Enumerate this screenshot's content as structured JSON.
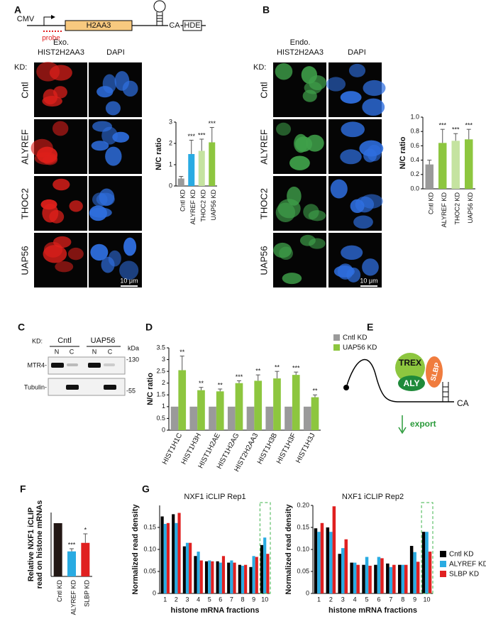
{
  "panel_labels": [
    "A",
    "B",
    "C",
    "D",
    "E",
    "F",
    "G"
  ],
  "panel_a": {
    "construct": {
      "promoter": "CMV",
      "probe": "probe",
      "gene": "H2AA3",
      "ca": "CA",
      "hde": "HDE"
    },
    "header_signal": [
      "Exo.",
      "HIST2H2AA3"
    ],
    "header_dapi": "DAPI",
    "kd": "KD:",
    "rows": [
      "Cntl",
      "ALYREF",
      "THOC2",
      "UAP56"
    ],
    "scale_bar": "10 μm"
  },
  "panel_b": {
    "header_signal": [
      "Endo.",
      "HIST2H2AA3"
    ],
    "header_dapi": "DAPI",
    "kd": "KD:",
    "rows": [
      "Cntl",
      "ALYREF",
      "THOC2",
      "UAP56"
    ],
    "scale_bar": "10 μm"
  },
  "panel_c": {
    "kd": "KD:",
    "groups": [
      "Cntl",
      "UAP56"
    ],
    "lanes": [
      "N",
      "C",
      "N",
      "C"
    ],
    "unit": "kDa",
    "bands": [
      "MTR4-",
      "Tubulin-"
    ],
    "markers": [
      "-130",
      "-55"
    ]
  },
  "panel_e": {
    "trex": "TREX",
    "aly": "ALY",
    "slbp": "SLBP",
    "ca": "CA",
    "export": "export"
  },
  "chart_data": [
    {
      "type": "bar",
      "ylabel": "N/C ratio",
      "categories": [
        "Cntl KD",
        "ALYREF KD",
        "THOC2 KD",
        "UAP56 KD"
      ],
      "values": [
        0.35,
        1.5,
        1.65,
        2.05
      ],
      "errors": [
        0.1,
        0.65,
        0.55,
        0.7
      ],
      "significance": [
        null,
        "***",
        "***",
        "***"
      ],
      "colors": [
        "#9a9a9a",
        "#29abe2",
        "#c5e3a0",
        "#8dc63f"
      ],
      "ylim": [
        0,
        3
      ],
      "yticks": [
        0,
        1,
        2,
        3
      ]
    },
    {
      "type": "bar",
      "ylabel": "N/C ratio",
      "categories": [
        "Cntl KD",
        "ALYREF KD",
        "THOC2 KD",
        "UAP56 KD"
      ],
      "values": [
        0.34,
        0.64,
        0.67,
        0.69
      ],
      "errors": [
        0.06,
        0.19,
        0.1,
        0.14
      ],
      "significance": [
        null,
        "***",
        "***",
        "***"
      ],
      "colors": [
        "#9a9a9a",
        "#8dc63f",
        "#c5e3a0",
        "#8dc63f"
      ],
      "ylim": [
        0,
        1.0
      ],
      "yticks": [
        {
          "value": 0,
          "label": "0.0"
        },
        0.2,
        0.4,
        0.6,
        0.8,
        {
          "value": 1.0,
          "label": "1.0"
        }
      ]
    },
    {
      "type": "bar",
      "ylabel": "N/C ratio",
      "categories": [
        "HIST1H1C",
        "HIST1H3H",
        "HIST1H2AE",
        "HIST1H2AG",
        "HIST2H2AA3",
        "HIST1H3B",
        "HIST1H3F",
        "HIST1H3J"
      ],
      "series": [
        {
          "name": "Cntl KD",
          "color": "#9a9a9a",
          "values": [
            1,
            1,
            1,
            1,
            1,
            1,
            1,
            1
          ]
        },
        {
          "name": "UAP56 KD",
          "color": "#8dc63f",
          "values": [
            2.55,
            1.7,
            1.65,
            2.0,
            2.1,
            2.2,
            2.35,
            1.4
          ],
          "errors": [
            0.6,
            0.12,
            0.1,
            0.1,
            0.25,
            0.3,
            0.12,
            0.1
          ],
          "significance": [
            "**",
            "**",
            "**",
            "***",
            "**",
            "**",
            "***",
            "**"
          ]
        }
      ],
      "ylim": [
        0,
        3.5
      ],
      "yticks": [
        0,
        0.5,
        1,
        1.5,
        2,
        2.5,
        3,
        3.5
      ]
    },
    {
      "type": "bar",
      "ylabel": [
        "Relative NXF1 iCLIP",
        "read on histone mRNAs"
      ],
      "categories": [
        "Cntl KD",
        "ALYREF KD",
        "SLBP KD"
      ],
      "values": [
        1.0,
        0.47,
        0.63
      ],
      "errors": [
        null,
        0.05,
        0.17
      ],
      "significance": [
        null,
        "***",
        "*"
      ],
      "colors": [
        "#231815",
        "#29abe2",
        "#e02020"
      ],
      "ylim": [
        0,
        1.2
      ]
    },
    {
      "type": "bar",
      "ylabel": "Normalized read density",
      "xlabel": "histone mRNA fractions",
      "categories": [
        "1",
        "2",
        "3",
        "4",
        "5",
        "6",
        "7",
        "8",
        "9",
        "10"
      ],
      "series": [
        {
          "name": "Cntl KD",
          "color": "#000000"
        },
        {
          "name": "ALYREF KD",
          "color": "#29abe2"
        },
        {
          "name": "SLBP KD",
          "color": "#e02020"
        }
      ],
      "panels": [
        {
          "title": "NXF1 iCLIP Rep1",
          "ylim": [
            0,
            0.2
          ],
          "yticks": [
            0,
            0.05,
            {
              "value": 0.1,
              "label": "0.10"
            },
            0.15
          ],
          "series": [
            {
              "values": [
                0.175,
                0.18,
                0.107,
                0.085,
                0.073,
                0.073,
                0.07,
                0.065,
                0.06,
                0.11
              ]
            },
            {
              "values": [
                0.158,
                0.16,
                0.115,
                0.095,
                0.075,
                0.07,
                0.075,
                0.063,
                0.085,
                0.127
              ]
            },
            {
              "values": [
                0.16,
                0.183,
                0.115,
                0.075,
                0.073,
                0.085,
                0.07,
                0.065,
                0.083,
                0.09
              ]
            }
          ]
        },
        {
          "title": "NXF1 iCLIP Rep2",
          "ylim": [
            0,
            0.2
          ],
          "yticks": [
            0,
            0.05,
            {
              "value": 0.1,
              "label": "0.10"
            },
            0.15,
            {
              "value": 0.2,
              "label": "0.20"
            }
          ],
          "series": [
            {
              "values": [
                0.148,
                0.15,
                0.09,
                0.07,
                0.065,
                0.065,
                0.068,
                0.065,
                0.108,
                0.14
              ]
            },
            {
              "values": [
                0.14,
                0.14,
                0.103,
                0.07,
                0.083,
                0.083,
                0.06,
                0.065,
                0.094,
                0.14
              ]
            },
            {
              "values": [
                0.16,
                0.198,
                0.123,
                0.065,
                0.063,
                0.08,
                0.065,
                0.065,
                0.072,
                0.095
              ]
            }
          ]
        }
      ]
    }
  ]
}
